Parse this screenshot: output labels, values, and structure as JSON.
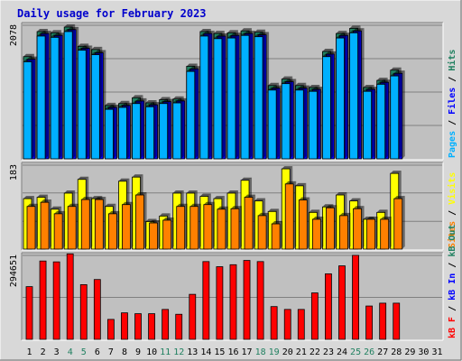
{
  "chart_data": [
    {
      "type": "bar",
      "title": "Daily usage for February 2023",
      "panel": "hits-files-pages",
      "ymax_label": "2078",
      "ymax": 2078,
      "legend": [
        {
          "label": "Pages",
          "color": "#00b0ff"
        },
        {
          "label": "Files",
          "color": "#0000ff"
        },
        {
          "label": "Hits",
          "color": "#208060"
        }
      ],
      "x": [
        1,
        2,
        3,
        4,
        5,
        6,
        7,
        8,
        9,
        10,
        11,
        12,
        13,
        14,
        15,
        16,
        17,
        18,
        19,
        20,
        21,
        22,
        23,
        24,
        25,
        26,
        27,
        28
      ],
      "series": [
        {
          "name": "Hits",
          "color": "#208060",
          "values": [
            1590,
            1980,
            1960,
            2050,
            1750,
            1700,
            830,
            860,
            950,
            870,
            920,
            930,
            1440,
            1980,
            1950,
            1960,
            1990,
            1970,
            1140,
            1240,
            1140,
            1110,
            1670,
            1950,
            2030,
            1110,
            1220,
            1380
          ]
        },
        {
          "name": "Files",
          "color": "#0000ff",
          "values": [
            1550,
            1950,
            1920,
            2010,
            1720,
            1650,
            800,
            830,
            900,
            840,
            890,
            900,
            1400,
            1950,
            1910,
            1920,
            1950,
            1930,
            1100,
            1200,
            1100,
            1080,
            1630,
            1920,
            1990,
            1080,
            1190,
            1330
          ]
        },
        {
          "name": "Pages",
          "color": "#00b0ff",
          "values": [
            1510,
            1910,
            1890,
            1980,
            1690,
            1620,
            770,
            800,
            860,
            810,
            860,
            870,
            1360,
            1910,
            1870,
            1880,
            1920,
            1900,
            1070,
            1170,
            1070,
            1050,
            1590,
            1880,
            1960,
            1050,
            1160,
            1290
          ]
        }
      ]
    },
    {
      "type": "bar",
      "panel": "visits-sites",
      "ymax_label": "183",
      "ymax": 183,
      "legend": [
        {
          "label": "Sites",
          "color": "#ff8000"
        },
        {
          "label": "Visits",
          "color": "#ffff00"
        }
      ],
      "x": [
        1,
        2,
        3,
        4,
        5,
        6,
        7,
        8,
        9,
        10,
        11,
        12,
        13,
        14,
        15,
        16,
        17,
        18,
        19,
        20,
        21,
        22,
        23,
        24,
        25,
        26,
        27,
        28
      ],
      "series": [
        {
          "name": "Visits",
          "color": "#ffff00",
          "values": [
            110,
            113,
            87,
            122,
            152,
            110,
            93,
            148,
            157,
            60,
            72,
            122,
            122,
            115,
            110,
            122,
            150,
            105,
            82,
            175,
            138,
            80,
            92,
            118,
            105,
            65,
            80,
            165
          ]
        },
        {
          "name": "Sites",
          "color": "#ff8000",
          "values": [
            93,
            102,
            77,
            93,
            108,
            108,
            77,
            97,
            118,
            57,
            63,
            93,
            93,
            97,
            87,
            88,
            113,
            73,
            55,
            142,
            107,
            65,
            90,
            73,
            88,
            65,
            65,
            110
          ]
        }
      ]
    },
    {
      "type": "bar",
      "panel": "kbytes",
      "ymax_label": "294651",
      "ymax": 294651,
      "legend": [
        {
          "label": "kB F",
          "color": "#ff0000"
        },
        {
          "label": "kB In",
          "color": "#0000ff"
        },
        {
          "label": "kB Out",
          "color": "#208060"
        }
      ],
      "x": [
        1,
        2,
        3,
        4,
        5,
        6,
        7,
        8,
        9,
        10,
        11,
        12,
        13,
        14,
        15,
        16,
        17,
        18,
        19,
        20,
        21,
        22,
        23,
        24,
        25,
        26,
        27,
        28
      ],
      "series": [
        {
          "name": "kB F",
          "color": "#ff0000",
          "values": [
            185000,
            275000,
            272000,
            300000,
            192000,
            210000,
            70000,
            93000,
            90000,
            90000,
            105000,
            88000,
            158000,
            273000,
            255000,
            262000,
            277000,
            273000,
            115000,
            105000,
            105000,
            163000,
            230000,
            258000,
            295000,
            117000,
            127000,
            127000
          ]
        }
      ]
    }
  ],
  "x_axis": {
    "labels": [
      "1",
      "2",
      "3",
      "4",
      "5",
      "6",
      "7",
      "8",
      "9",
      "10",
      "11",
      "12",
      "13",
      "14",
      "15",
      "16",
      "17",
      "18",
      "19",
      "20",
      "21",
      "22",
      "23",
      "24",
      "25",
      "26",
      "27",
      "28",
      "29",
      "30",
      "31"
    ],
    "weekend_days": [
      4,
      5,
      11,
      12,
      18,
      19,
      25,
      26
    ],
    "weekday_color": "#000000",
    "weekend_color": "#208060"
  },
  "colors": {
    "background": "#d8d8d8",
    "plot_background": "#c0c0c0",
    "grid": "#808080",
    "title": "#0000cc"
  }
}
